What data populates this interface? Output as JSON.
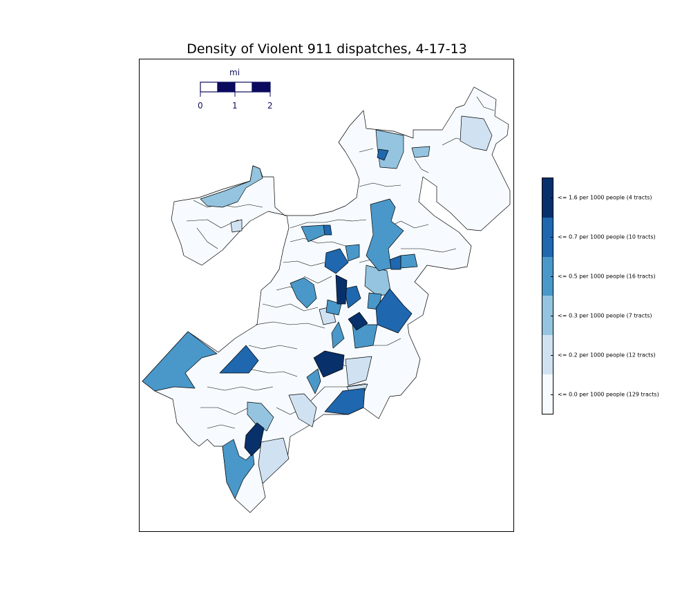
{
  "title": "Density of Violent 911 dispatches, 4-17-13",
  "scalebar": {
    "unit": "mi",
    "ticks": [
      "0",
      "1",
      "2"
    ],
    "color": "#0b0b5e"
  },
  "legend": {
    "placement": "right",
    "entries": [
      {
        "label": "<= 1.6 per 1000 people (4 tracts)",
        "color": "#08306b"
      },
      {
        "label": "<= 0.7 per 1000 people (10 tracts)",
        "color": "#1f67ae"
      },
      {
        "label": "<= 0.5 per 1000 people (16 tracts)",
        "color": "#4a98c9"
      },
      {
        "label": "<= 0.3 per 1000 people (7 tracts)",
        "color": "#94c4df"
      },
      {
        "label": "<= 0.2 per 1000 people (12 tracts)",
        "color": "#d0e2f2"
      },
      {
        "label": "<= 0.0 per 1000 people (129 tracts)",
        "color": "#f7fbff"
      }
    ]
  },
  "colors": {
    "outline": "#000000",
    "background": "#ffffff"
  }
}
